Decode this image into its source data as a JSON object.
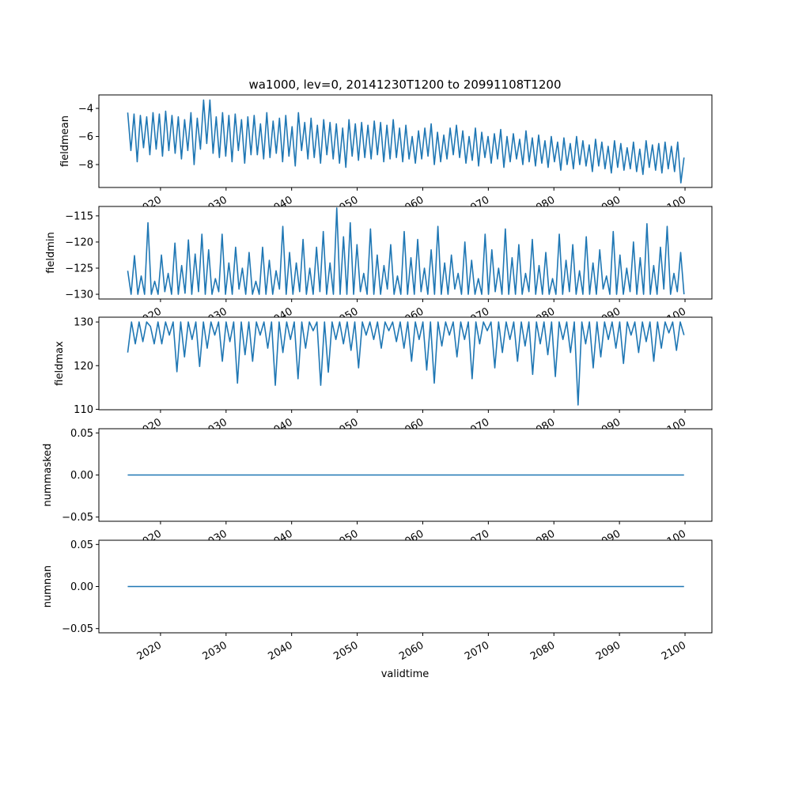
{
  "chart_data": {
    "type": "line",
    "title": "wa1000, lev=0, 20141230T1200 to 20991108T1200",
    "xlabel": "validtime",
    "x_start": 2015.0,
    "x_end": 2099.85,
    "xlim": [
      2010.6,
      2104.1
    ],
    "xticks": [
      2020,
      2030,
      2040,
      2050,
      2060,
      2070,
      2080,
      2090,
      2100
    ],
    "xtick_labels": [
      "2020",
      "2030",
      "2040",
      "2050",
      "2060",
      "2070",
      "2080",
      "2090",
      "2100"
    ],
    "line_color": "#1f77b4",
    "grid": false,
    "panels": [
      {
        "ylabel": "fieldmean",
        "ylim": [
          -9.63,
          -3.04
        ],
        "yticks": [
          -4,
          -6,
          -8
        ],
        "ytick_labels": [
          "−4",
          "−6",
          "−8"
        ],
        "values": [
          -4.3,
          -7.0,
          -4.4,
          -7.8,
          -4.5,
          -6.8,
          -4.6,
          -7.3,
          -4.3,
          -6.9,
          -4.4,
          -7.4,
          -4.2,
          -7.0,
          -4.5,
          -7.2,
          -4.6,
          -7.6,
          -4.8,
          -7.0,
          -4.3,
          -8.0,
          -4.7,
          -6.9,
          -3.4,
          -6.5,
          -3.4,
          -7.2,
          -4.6,
          -7.5,
          -4.3,
          -7.4,
          -4.5,
          -7.8,
          -4.4,
          -7.0,
          -4.8,
          -7.9,
          -4.6,
          -7.3,
          -4.5,
          -7.3,
          -5.1,
          -7.6,
          -4.3,
          -7.5,
          -4.9,
          -7.2,
          -4.7,
          -7.8,
          -4.5,
          -7.4,
          -5.3,
          -8.1,
          -4.3,
          -7.0,
          -5.0,
          -7.6,
          -4.7,
          -7.5,
          -5.2,
          -7.9,
          -4.8,
          -7.3,
          -5.0,
          -7.6,
          -5.1,
          -7.9,
          -5.4,
          -8.2,
          -4.8,
          -7.4,
          -5.1,
          -7.7,
          -5.0,
          -7.5,
          -5.2,
          -7.6,
          -4.9,
          -7.3,
          -5.0,
          -7.8,
          -5.2,
          -7.6,
          -4.8,
          -7.5,
          -5.4,
          -7.8,
          -5.2,
          -7.6,
          -6.0,
          -7.9,
          -5.6,
          -7.6,
          -5.4,
          -7.4,
          -5.1,
          -8.0,
          -5.7,
          -7.8,
          -5.9,
          -7.6,
          -5.4,
          -7.3,
          -5.2,
          -7.5,
          -5.6,
          -7.9,
          -6.0,
          -7.7,
          -5.4,
          -8.1,
          -5.7,
          -7.5,
          -6.0,
          -7.9,
          -5.8,
          -7.6,
          -5.5,
          -8.2,
          -6.0,
          -7.8,
          -5.8,
          -7.6,
          -6.2,
          -8.0,
          -5.6,
          -7.8,
          -6.1,
          -8.1,
          -5.9,
          -7.9,
          -6.3,
          -8.2,
          -6.0,
          -7.8,
          -6.4,
          -8.4,
          -6.1,
          -8.0,
          -6.5,
          -8.3,
          -6.0,
          -8.0,
          -6.3,
          -8.1,
          -6.6,
          -8.5,
          -6.2,
          -8.1,
          -6.4,
          -8.3,
          -6.7,
          -8.6,
          -6.3,
          -8.2,
          -6.5,
          -8.4,
          -6.8,
          -8.3,
          -6.4,
          -8.5,
          -6.9,
          -8.7,
          -6.3,
          -8.2,
          -6.6,
          -8.4,
          -6.5,
          -8.6,
          -6.4,
          -8.3,
          -6.7,
          -8.5,
          -6.4,
          -9.3,
          -7.5
        ]
      },
      {
        "ylabel": "fieldmin",
        "ylim": [
          -130.9,
          -113.2
        ],
        "yticks": [
          -115,
          -120,
          -125,
          -130
        ],
        "ytick_labels": [
          "−115",
          "−120",
          "−125",
          "−130"
        ],
        "values": [
          -125.5,
          -130,
          -122.6,
          -130,
          -126.5,
          -130,
          -116.3,
          -130,
          -127.5,
          -130,
          -122.5,
          -129.5,
          -126,
          -130,
          -120.2,
          -130,
          -124.5,
          -129.8,
          -119.6,
          -130,
          -122.3,
          -129.5,
          -118.5,
          -130,
          -121.5,
          -130,
          -127,
          -129.5,
          -118.5,
          -130,
          -124,
          -130,
          -121,
          -129,
          -125,
          -130,
          -122,
          -130,
          -127.5,
          -130,
          -121,
          -130,
          -123.5,
          -130,
          -125.5,
          -129,
          -117,
          -130,
          -122,
          -130,
          -124,
          -129.5,
          -119.5,
          -130,
          -125,
          -130,
          -121,
          -129.5,
          -118,
          -130,
          -124,
          -130,
          -113.5,
          -130,
          -119,
          -130,
          -116.3,
          -130,
          -120.5,
          -129.5,
          -126,
          -130,
          -117.5,
          -130,
          -122.5,
          -130,
          -124.5,
          -129,
          -120.5,
          -130,
          -126.5,
          -130,
          -118,
          -130,
          -123,
          -130,
          -119.5,
          -129.5,
          -125,
          -130,
          -121.5,
          -130,
          -117,
          -130,
          -124,
          -130,
          -122.5,
          -129,
          -126,
          -130,
          -120,
          -130,
          -123.5,
          -130,
          -127,
          -130,
          -118.5,
          -130,
          -121.5,
          -129.5,
          -125,
          -130,
          -117.5,
          -130,
          -123,
          -130,
          -120.5,
          -130,
          -126,
          -129.5,
          -119.5,
          -130,
          -124.5,
          -130,
          -122,
          -130,
          -127,
          -130,
          -118.5,
          -130,
          -123.5,
          -129.5,
          -120.5,
          -130,
          -125.5,
          -130,
          -119,
          -130,
          -124,
          -130,
          -121.5,
          -129,
          -126.5,
          -130,
          -118,
          -130,
          -122.5,
          -130,
          -125,
          -129.5,
          -120,
          -130,
          -123,
          -130,
          -116.5,
          -130,
          -124.5,
          -130,
          -121,
          -129,
          -117,
          -130,
          -126,
          -129.5,
          -122,
          -130
        ]
      },
      {
        "ylabel": "fieldmax",
        "ylim": [
          109.9,
          131.1
        ],
        "yticks": [
          110,
          120,
          130
        ],
        "ytick_labels": [
          "110",
          "120",
          "130"
        ],
        "values": [
          123,
          130,
          125,
          130,
          125.5,
          130,
          129,
          125,
          130,
          125,
          130,
          127,
          130,
          118.6,
          130,
          122,
          130,
          126,
          130,
          119.8,
          130,
          124,
          130,
          127,
          130,
          121,
          130,
          125.5,
          130,
          116,
          130,
          122.5,
          130,
          121,
          130,
          127,
          130,
          124,
          130,
          115.5,
          130,
          123,
          130,
          126,
          130,
          117,
          130,
          124,
          130,
          128,
          130,
          115.5,
          130,
          118.5,
          130,
          126,
          130,
          125,
          130,
          123.5,
          130,
          119.5,
          130,
          127,
          130,
          126,
          130,
          124,
          130,
          128,
          130,
          125.5,
          130,
          124,
          130,
          121,
          130,
          126,
          130,
          119,
          130,
          116,
          130,
          124.5,
          130,
          127,
          130,
          122,
          130,
          126,
          130,
          117,
          130,
          125,
          130,
          128,
          130,
          119.5,
          130,
          123,
          130,
          126,
          130,
          121,
          130,
          124.5,
          130,
          118,
          130,
          125,
          130,
          122.5,
          130,
          117.5,
          130,
          126,
          130,
          123,
          130,
          111,
          130,
          125,
          130,
          119.5,
          130,
          122,
          130,
          126,
          130,
          124,
          130,
          120.5,
          130,
          127,
          130,
          123,
          130,
          125.5,
          130,
          121,
          130,
          124,
          130,
          127.5,
          130,
          123.5,
          130,
          127
        ]
      },
      {
        "ylabel": "nummasked",
        "ylim": [
          -0.055,
          0.055
        ],
        "yticks": [
          0.05,
          0.0,
          -0.05
        ],
        "ytick_labels": [
          "0.05",
          "0.00",
          "−0.05"
        ],
        "values": [
          0,
          0
        ]
      },
      {
        "ylabel": "numnan",
        "ylim": [
          -0.055,
          0.055
        ],
        "yticks": [
          0.05,
          0.0,
          -0.05
        ],
        "ytick_labels": [
          "0.05",
          "0.00",
          "−0.05"
        ],
        "values": [
          0,
          0
        ]
      }
    ]
  }
}
